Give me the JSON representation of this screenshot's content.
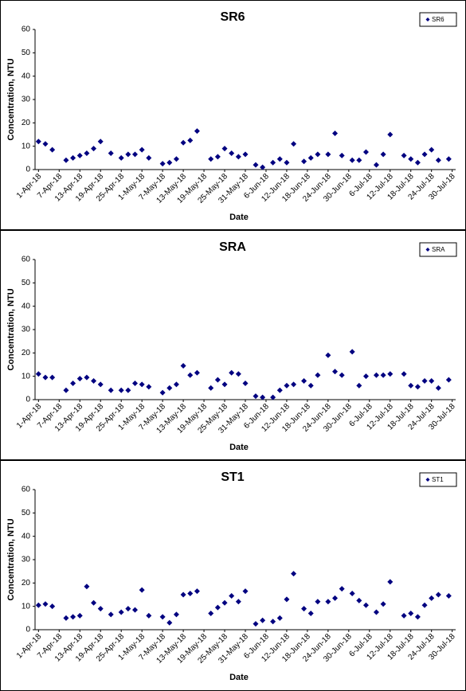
{
  "chart_data": [
    {
      "type": "scatter",
      "title": "SR6",
      "x_label": "Date",
      "y_label": "Concentration, NTU",
      "x": [
        "2018-04-01",
        "2018-04-03",
        "2018-04-05",
        "2018-04-09",
        "2018-04-11",
        "2018-04-13",
        "2018-04-15",
        "2018-04-17",
        "2018-04-19",
        "2018-04-22",
        "2018-04-25",
        "2018-04-27",
        "2018-04-29",
        "2018-05-01",
        "2018-05-03",
        "2018-05-07",
        "2018-05-09",
        "2018-05-11",
        "2018-05-13",
        "2018-05-15",
        "2018-05-17",
        "2018-05-21",
        "2018-05-23",
        "2018-05-25",
        "2018-05-27",
        "2018-05-29",
        "2018-05-31",
        "2018-06-03",
        "2018-06-05",
        "2018-06-08",
        "2018-06-10",
        "2018-06-12",
        "2018-06-14",
        "2018-06-17",
        "2018-06-19",
        "2018-06-21",
        "2018-06-24",
        "2018-06-26",
        "2018-06-28",
        "2018-07-01",
        "2018-07-03",
        "2018-07-05",
        "2018-07-08",
        "2018-07-10",
        "2018-07-12",
        "2018-07-16",
        "2018-07-18",
        "2018-07-20",
        "2018-07-22",
        "2018-07-24",
        "2018-07-26",
        "2018-07-29"
      ],
      "series": [
        {
          "name": "SR6",
          "color": "#000080",
          "values": [
            12,
            11,
            8.5,
            4,
            5,
            6,
            7,
            9,
            12,
            7,
            5,
            6.5,
            6.5,
            8.5,
            5,
            2.5,
            3,
            4.5,
            11.5,
            12.5,
            16.5,
            4.5,
            5.5,
            9,
            7,
            5.5,
            6.5,
            2,
            1,
            3,
            4.5,
            3,
            11,
            3.5,
            5,
            6.5,
            6.5,
            15.5,
            6,
            4,
            4,
            7.5,
            2,
            6.5,
            15,
            6,
            4.5,
            3,
            6.5,
            8.5,
            4,
            4.5
          ]
        }
      ],
      "xlim": [
        "2018-03-31",
        "2018-07-31"
      ],
      "xticks": [
        {
          "value": "2018-04-01",
          "label": "1-Apr-18"
        },
        {
          "value": "2018-04-07",
          "label": "7-Apr-18"
        },
        {
          "value": "2018-04-13",
          "label": "13-Apr-18"
        },
        {
          "value": "2018-04-19",
          "label": "19-Apr-18"
        },
        {
          "value": "2018-04-25",
          "label": "25-Apr-18"
        },
        {
          "value": "2018-05-01",
          "label": "1-May-18"
        },
        {
          "value": "2018-05-07",
          "label": "7-May-18"
        },
        {
          "value": "2018-05-13",
          "label": "13-May-18"
        },
        {
          "value": "2018-05-19",
          "label": "19-May-18"
        },
        {
          "value": "2018-05-25",
          "label": "25-May-18"
        },
        {
          "value": "2018-05-31",
          "label": "31-May-18"
        },
        {
          "value": "2018-06-06",
          "label": "6-Jun-18"
        },
        {
          "value": "2018-06-12",
          "label": "12-Jun-18"
        },
        {
          "value": "2018-06-18",
          "label": "18-Jun-18"
        },
        {
          "value": "2018-06-24",
          "label": "24-Jun-18"
        },
        {
          "value": "2018-06-30",
          "label": "30-Jun-18"
        },
        {
          "value": "2018-07-06",
          "label": "6-Jul-18"
        },
        {
          "value": "2018-07-12",
          "label": "12-Jul-18"
        },
        {
          "value": "2018-07-18",
          "label": "18-Jul-18"
        },
        {
          "value": "2018-07-24",
          "label": "24-Jul-18"
        },
        {
          "value": "2018-07-30",
          "label": "30-Jul-18"
        }
      ],
      "ylim": [
        0,
        60
      ],
      "yticks": [
        0,
        10,
        20,
        30,
        40,
        50,
        60
      ],
      "grid": false,
      "legend": "upper right"
    },
    {
      "type": "scatter",
      "title": "SRA",
      "x_label": "Date",
      "y_label": "Concentration, NTU",
      "x": [
        "2018-04-01",
        "2018-04-03",
        "2018-04-05",
        "2018-04-09",
        "2018-04-11",
        "2018-04-13",
        "2018-04-15",
        "2018-04-17",
        "2018-04-19",
        "2018-04-22",
        "2018-04-25",
        "2018-04-27",
        "2018-04-29",
        "2018-05-01",
        "2018-05-03",
        "2018-05-07",
        "2018-05-09",
        "2018-05-11",
        "2018-05-13",
        "2018-05-15",
        "2018-05-17",
        "2018-05-21",
        "2018-05-23",
        "2018-05-25",
        "2018-05-27",
        "2018-05-29",
        "2018-05-31",
        "2018-06-03",
        "2018-06-05",
        "2018-06-08",
        "2018-06-10",
        "2018-06-12",
        "2018-06-14",
        "2018-06-17",
        "2018-06-19",
        "2018-06-21",
        "2018-06-24",
        "2018-06-26",
        "2018-06-28",
        "2018-07-01",
        "2018-07-03",
        "2018-07-05",
        "2018-07-08",
        "2018-07-10",
        "2018-07-12",
        "2018-07-16",
        "2018-07-18",
        "2018-07-20",
        "2018-07-22",
        "2018-07-24",
        "2018-07-26",
        "2018-07-29"
      ],
      "series": [
        {
          "name": "SRA",
          "color": "#000080",
          "values": [
            11,
            9.5,
            9.5,
            4,
            7,
            9,
            9.5,
            8,
            6.5,
            4,
            4,
            4,
            7,
            6.5,
            5.5,
            3,
            5,
            6.5,
            14.5,
            10.5,
            11.5,
            5,
            8.5,
            6.5,
            11.5,
            11,
            7,
            1.5,
            1,
            1,
            4,
            6,
            6.5,
            8,
            6,
            10.5,
            19,
            12,
            10.5,
            20.5,
            6,
            10,
            10.5,
            10.5,
            11,
            11,
            6,
            5.5,
            8,
            8,
            5,
            8.5
          ]
        }
      ],
      "xlim": [
        "2018-03-31",
        "2018-07-31"
      ],
      "xticks": [
        {
          "value": "2018-04-01",
          "label": "1-Apr-18"
        },
        {
          "value": "2018-04-07",
          "label": "7-Apr-18"
        },
        {
          "value": "2018-04-13",
          "label": "13-Apr-18"
        },
        {
          "value": "2018-04-19",
          "label": "19-Apr-18"
        },
        {
          "value": "2018-04-25",
          "label": "25-Apr-18"
        },
        {
          "value": "2018-05-01",
          "label": "1-May-18"
        },
        {
          "value": "2018-05-07",
          "label": "7-May-18"
        },
        {
          "value": "2018-05-13",
          "label": "13-May-18"
        },
        {
          "value": "2018-05-19",
          "label": "19-May-18"
        },
        {
          "value": "2018-05-25",
          "label": "25-May-18"
        },
        {
          "value": "2018-05-31",
          "label": "31-May-18"
        },
        {
          "value": "2018-06-06",
          "label": "6-Jun-18"
        },
        {
          "value": "2018-06-12",
          "label": "12-Jun-18"
        },
        {
          "value": "2018-06-18",
          "label": "18-Jun-18"
        },
        {
          "value": "2018-06-24",
          "label": "24-Jun-18"
        },
        {
          "value": "2018-06-30",
          "label": "30-Jun-18"
        },
        {
          "value": "2018-07-06",
          "label": "6-Jul-18"
        },
        {
          "value": "2018-07-12",
          "label": "12-Jul-18"
        },
        {
          "value": "2018-07-18",
          "label": "18-Jul-18"
        },
        {
          "value": "2018-07-24",
          "label": "24-Jul-18"
        },
        {
          "value": "2018-07-30",
          "label": "30-Jul-18"
        }
      ],
      "ylim": [
        0,
        60
      ],
      "yticks": [
        0,
        10,
        20,
        30,
        40,
        50,
        60
      ],
      "grid": false,
      "legend": "upper right"
    },
    {
      "type": "scatter",
      "title": "ST1",
      "x_label": "Date",
      "y_label": "Concentration, NTU",
      "x": [
        "2018-04-01",
        "2018-04-03",
        "2018-04-05",
        "2018-04-09",
        "2018-04-11",
        "2018-04-13",
        "2018-04-15",
        "2018-04-17",
        "2018-04-19",
        "2018-04-22",
        "2018-04-25",
        "2018-04-27",
        "2018-04-29",
        "2018-05-01",
        "2018-05-03",
        "2018-05-07",
        "2018-05-09",
        "2018-05-11",
        "2018-05-13",
        "2018-05-15",
        "2018-05-17",
        "2018-05-21",
        "2018-05-23",
        "2018-05-25",
        "2018-05-27",
        "2018-05-29",
        "2018-05-31",
        "2018-06-03",
        "2018-06-05",
        "2018-06-08",
        "2018-06-10",
        "2018-06-12",
        "2018-06-14",
        "2018-06-17",
        "2018-06-19",
        "2018-06-21",
        "2018-06-24",
        "2018-06-26",
        "2018-06-28",
        "2018-07-01",
        "2018-07-03",
        "2018-07-05",
        "2018-07-08",
        "2018-07-10",
        "2018-07-12",
        "2018-07-16",
        "2018-07-18",
        "2018-07-20",
        "2018-07-22",
        "2018-07-24",
        "2018-07-26",
        "2018-07-29"
      ],
      "series": [
        {
          "name": "ST1",
          "color": "#000080",
          "values": [
            10.5,
            11,
            10,
            5,
            5.5,
            6,
            18.5,
            11.5,
            9,
            6.5,
            7.5,
            9,
            8.5,
            17,
            6,
            5.5,
            3,
            6.5,
            15,
            15.5,
            16.5,
            7,
            9.5,
            11.5,
            14.5,
            12,
            16.5,
            2.5,
            4,
            3.5,
            5,
            13,
            24,
            9,
            7,
            12,
            12,
            13.5,
            17.5,
            15.5,
            12.5,
            10.5,
            7.5,
            11,
            20.5,
            6,
            7,
            5.5,
            10.5,
            13.5,
            15,
            14.5
          ]
        }
      ],
      "xlim": [
        "2018-03-31",
        "2018-07-31"
      ],
      "xticks": [
        {
          "value": "2018-04-01",
          "label": "1-Apr-18"
        },
        {
          "value": "2018-04-07",
          "label": "7-Apr-18"
        },
        {
          "value": "2018-04-13",
          "label": "13-Apr-18"
        },
        {
          "value": "2018-04-19",
          "label": "19-Apr-18"
        },
        {
          "value": "2018-04-25",
          "label": "25-Apr-18"
        },
        {
          "value": "2018-05-01",
          "label": "1-May-18"
        },
        {
          "value": "2018-05-07",
          "label": "7-May-18"
        },
        {
          "value": "2018-05-13",
          "label": "13-May-18"
        },
        {
          "value": "2018-05-19",
          "label": "19-May-18"
        },
        {
          "value": "2018-05-25",
          "label": "25-May-18"
        },
        {
          "value": "2018-05-31",
          "label": "31-May-18"
        },
        {
          "value": "2018-06-06",
          "label": "6-Jun-18"
        },
        {
          "value": "2018-06-12",
          "label": "12-Jun-18"
        },
        {
          "value": "2018-06-18",
          "label": "18-Jun-18"
        },
        {
          "value": "2018-06-24",
          "label": "24-Jun-18"
        },
        {
          "value": "2018-06-30",
          "label": "30-Jun-18"
        },
        {
          "value": "2018-07-06",
          "label": "6-Jul-18"
        },
        {
          "value": "2018-07-12",
          "label": "12-Jul-18"
        },
        {
          "value": "2018-07-18",
          "label": "18-Jul-18"
        },
        {
          "value": "2018-07-24",
          "label": "24-Jul-18"
        },
        {
          "value": "2018-07-30",
          "label": "30-Jul-18"
        }
      ],
      "ylim": [
        0,
        60
      ],
      "yticks": [
        0,
        10,
        20,
        30,
        40,
        50,
        60
      ],
      "grid": false,
      "legend": "upper right"
    }
  ]
}
